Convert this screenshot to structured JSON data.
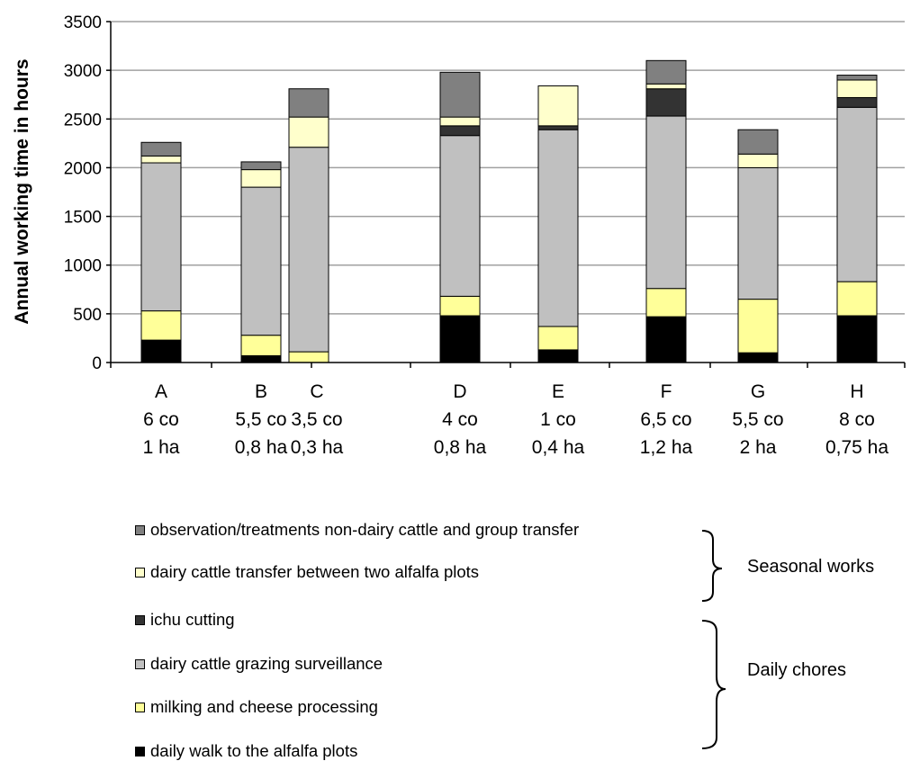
{
  "chart_data": {
    "type": "bar",
    "stacked": true,
    "ylabel": "Annual working time in hours",
    "ylim": [
      0,
      3500
    ],
    "yticks": [
      0,
      500,
      1000,
      1500,
      2000,
      2500,
      3000,
      3500
    ],
    "categories": [
      {
        "letter": "A",
        "cows": "6 co",
        "area": "1 ha"
      },
      {
        "letter": "B",
        "cows": "5,5 co",
        "area": "0,8 ha"
      },
      {
        "letter": "C",
        "cows": "3,5 co",
        "area": "0,3 ha"
      },
      {
        "letter": "D",
        "cows": "4 co",
        "area": "0,8 ha"
      },
      {
        "letter": "E",
        "cows": "1 co",
        "area": "0,4 ha"
      },
      {
        "letter": "F",
        "cows": "6,5 co",
        "area": "1,2 ha"
      },
      {
        "letter": "G",
        "cows": "5,5 co",
        "area": "2 ha"
      },
      {
        "letter": "H",
        "cows": "8 co",
        "area": "0,75 ha"
      }
    ],
    "series": [
      {
        "name": "daily walk to the alfalfa plots",
        "color": "#000000",
        "values": [
          230,
          70,
          0,
          480,
          130,
          470,
          100,
          480
        ]
      },
      {
        "name": "milking and cheese processing",
        "color": "#ffff99",
        "values": [
          300,
          210,
          110,
          200,
          240,
          290,
          550,
          350
        ]
      },
      {
        "name": "dairy cattle grazing surveillance",
        "color": "#c0c0c0",
        "values": [
          1520,
          1520,
          2100,
          1650,
          2020,
          1770,
          1350,
          1790
        ]
      },
      {
        "name": "ichu cutting",
        "color": "#333333",
        "values": [
          0,
          0,
          0,
          100,
          40,
          280,
          0,
          100
        ]
      },
      {
        "name": "dairy cattle transfer between two alfalfa plots",
        "color": "#ffffcc",
        "values": [
          70,
          180,
          310,
          90,
          410,
          50,
          140,
          180
        ]
      },
      {
        "name": "observation/treatments non-dairy cattle and group transfer",
        "color": "#808080",
        "values": [
          140,
          80,
          290,
          460,
          0,
          240,
          250,
          50
        ]
      }
    ],
    "grid": true
  },
  "legend": {
    "items_top_to_bottom": [
      {
        "label": "observation/treatments non-dairy cattle and group transfer",
        "color": "#808080"
      },
      {
        "label": "dairy cattle transfer between two alfalfa plots",
        "color": "#ffffcc"
      },
      {
        "label": "ichu cutting",
        "color": "#333333"
      },
      {
        "label": "dairy cattle grazing surveillance",
        "color": "#c0c0c0"
      },
      {
        "label": "milking and cheese processing",
        "color": "#ffff99"
      },
      {
        "label": "daily walk to the alfalfa plots",
        "color": "#000000"
      }
    ],
    "group_seasonal": "Seasonal works",
    "group_daily": "Daily chores"
  }
}
